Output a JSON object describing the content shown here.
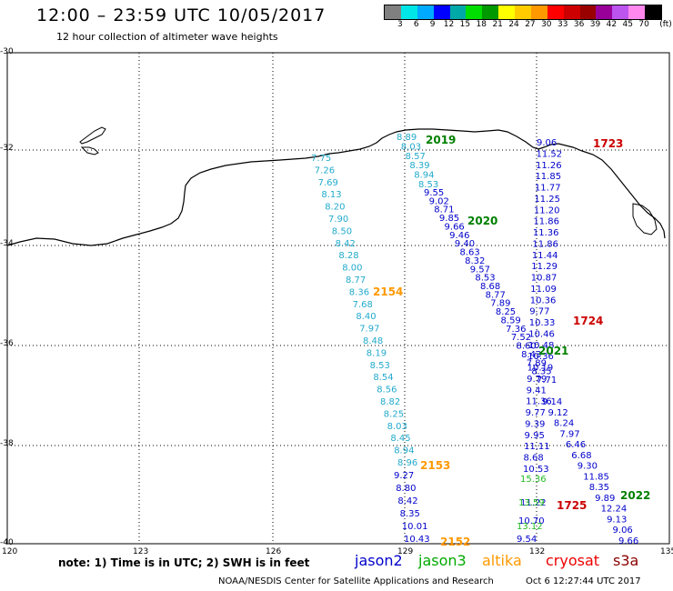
{
  "header": {
    "title": "12:00 – 23:59 UTC 10/05/2017",
    "subtitle": "12 hour collection of altimeter wave heights"
  },
  "colorbar": {
    "colors": [
      "#808080",
      "#00e5e5",
      "#00aaff",
      "#0000ff",
      "#00a8a8",
      "#00dd00",
      "#009900",
      "#ffff00",
      "#ffcc00",
      "#ff9900",
      "#ff0000",
      "#cc0000",
      "#990000",
      "#990099",
      "#bb55ee",
      "#ff88ee",
      "#000000"
    ],
    "labels": [
      "3",
      "6",
      "9",
      "12",
      "15",
      "18",
      "21",
      "24",
      "27",
      "30",
      "33",
      "36",
      "39",
      "42",
      "45",
      "70",
      "(ft)"
    ]
  },
  "axes": {
    "lat_labels": [
      "-30",
      "-32",
      "-34",
      "-36",
      "-38",
      "-40"
    ],
    "lon_labels": [
      "120",
      "123",
      "126",
      "129",
      "132",
      "135"
    ]
  },
  "legend": {
    "note": "note:  1) Time is in UTC;  2) SWH is in feet",
    "sats": [
      {
        "name": "jason2",
        "color": "#0000cc"
      },
      {
        "name": "jason3",
        "color": "#00aa00"
      },
      {
        "name": "altika",
        "color": "#ff9900"
      },
      {
        "name": "cryosat",
        "color": "#ee0000"
      },
      {
        "name": "s3a",
        "color": "#8b0000"
      }
    ]
  },
  "footer": {
    "credit": "NOAA/NESDIS Center for Satellite Applications and Research",
    "timestamp": "Oct  6 12:27:44 UTC 2017"
  },
  "time_labels": [
    {
      "text": "2019",
      "color": "#008000"
    },
    {
      "text": "2020",
      "color": "#008000"
    },
    {
      "text": "2154",
      "color": "#ff9900"
    },
    {
      "text": "1723",
      "color": "#cc0000"
    },
    {
      "text": "1724",
      "color": "#cc0000"
    },
    {
      "text": "2021",
      "color": "#008000"
    },
    {
      "text": "2153",
      "color": "#ff9900"
    },
    {
      "text": "2022",
      "color": "#008000"
    },
    {
      "text": "1725",
      "color": "#cc0000"
    },
    {
      "text": "2152",
      "color": "#ff9900"
    }
  ],
  "tracks": [
    {
      "id": "track-2154",
      "color": "#22aacc",
      "values": [
        "7.75",
        "7.26",
        "7.69",
        "8.13",
        "8.20",
        "7.90",
        "8.50",
        "8.42",
        "8.28",
        "8.00",
        "8.77",
        "8.36",
        "7.68",
        "8.40",
        "7.97",
        "8.48",
        "8.19",
        "8.53",
        "8.54",
        "8.56",
        "8.82",
        "8.25",
        "8.03",
        "8.45",
        "8.94",
        "8.96"
      ]
    },
    {
      "id": "track-2153",
      "color": "#0000cc",
      "values": [
        "9.27",
        "8.80",
        "8.42",
        "8.35",
        "10.01",
        "10.43"
      ]
    },
    {
      "id": "track-2019",
      "color": "#22aacc",
      "values": [
        "8.89",
        "8.03",
        "8.57",
        "8.39",
        "8.94",
        "8.53"
      ]
    },
    {
      "id": "track-2020",
      "color": "#0000cc",
      "values": [
        "9.55",
        "9.02",
        "8.71",
        "9.85",
        "9.66",
        "9.46",
        "9.40",
        "8.63",
        "8.32",
        "9.57",
        "8.53",
        "8.68",
        "8.77",
        "7.89",
        "8.25",
        "8.59",
        "7.36",
        "7.52",
        "8.60",
        "8.43",
        "7.89",
        "8.35",
        "7.71"
      ]
    },
    {
      "id": "track-1723",
      "color": "#0000cc",
      "values": [
        "9.06",
        "11.52",
        "11.26",
        "11.85",
        "11.77",
        "11.25",
        "11.20",
        "11.86",
        "11.36",
        "11.86",
        "11.44",
        "11.29",
        "10.87",
        "11.09",
        "10.36",
        "9.77",
        "10.33",
        "10.46",
        "10.48",
        "10.36",
        "10.19",
        "9.79",
        "9.41",
        "11.36",
        "9.77",
        "9.39",
        "9.95",
        "11.11",
        "8.68",
        "10.53"
      ]
    },
    {
      "id": "track-1725",
      "color": "#0000cc",
      "values": [
        "11.22",
        "10.70",
        "9.54"
      ]
    },
    {
      "id": "track-jason3-green",
      "color": "#22bb22",
      "values": [
        "15.36",
        "13.59",
        "13.12"
      ]
    },
    {
      "id": "track-2022",
      "color": "#0000cc",
      "values": [
        "9.14",
        "9.12",
        "8.24",
        "7.97",
        "6.46",
        "6.68",
        "9.30",
        "11.85",
        "8.35",
        "9.89",
        "12.24",
        "9.13",
        "9.06",
        "9.66"
      ]
    }
  ]
}
